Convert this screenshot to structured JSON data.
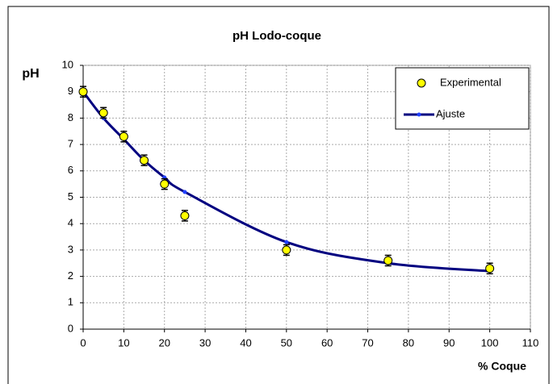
{
  "chart_data": {
    "type": "scatter",
    "title": "pH Lodo-coque",
    "x_label": "% Coque",
    "y_label": "pH",
    "x": [
      0,
      5,
      10,
      15,
      20,
      25,
      50,
      75,
      100
    ],
    "series": [
      {
        "name": "Experimental",
        "color": "#ffff00",
        "values": [
          9.0,
          8.2,
          7.3,
          6.4,
          5.5,
          4.3,
          3.0,
          2.6,
          2.3
        ],
        "errors": [
          0.2,
          0.2,
          0.2,
          0.2,
          0.2,
          0.2,
          0.2,
          0.2,
          0.2
        ]
      },
      {
        "name": "Ajuste",
        "color": "#000080",
        "values": [
          9.0,
          8.0,
          7.2,
          6.4,
          5.75,
          5.2,
          3.3,
          2.5,
          2.2
        ],
        "line": true
      }
    ],
    "xlim": [
      0,
      110
    ],
    "xticks": [
      0,
      10,
      20,
      30,
      40,
      50,
      60,
      70,
      80,
      90,
      100,
      110
    ],
    "ylim": [
      0,
      10
    ],
    "yticks": [
      0,
      1,
      2,
      3,
      4,
      5,
      6,
      7,
      8,
      9,
      10
    ],
    "grid": true,
    "legend": "upper right"
  }
}
